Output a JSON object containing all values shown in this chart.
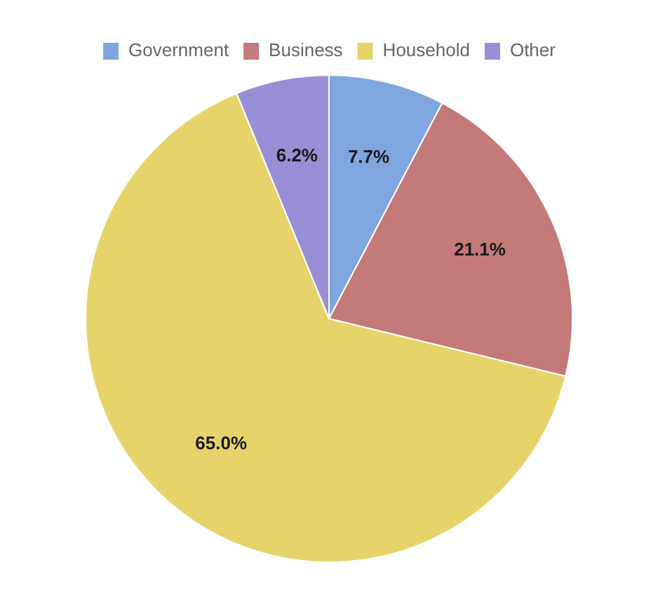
{
  "chart_data": {
    "type": "pie",
    "categories": [
      "Government",
      "Business",
      "Household",
      "Other"
    ],
    "values": [
      7.7,
      21.1,
      65.0,
      6.2
    ],
    "colors": [
      "#7fa6e0",
      "#c47a78",
      "#e6d46a",
      "#9a8fd6"
    ],
    "value_labels": [
      "7.7%",
      "21.1%",
      "65.0%",
      "6.2%"
    ],
    "legend": "top"
  }
}
